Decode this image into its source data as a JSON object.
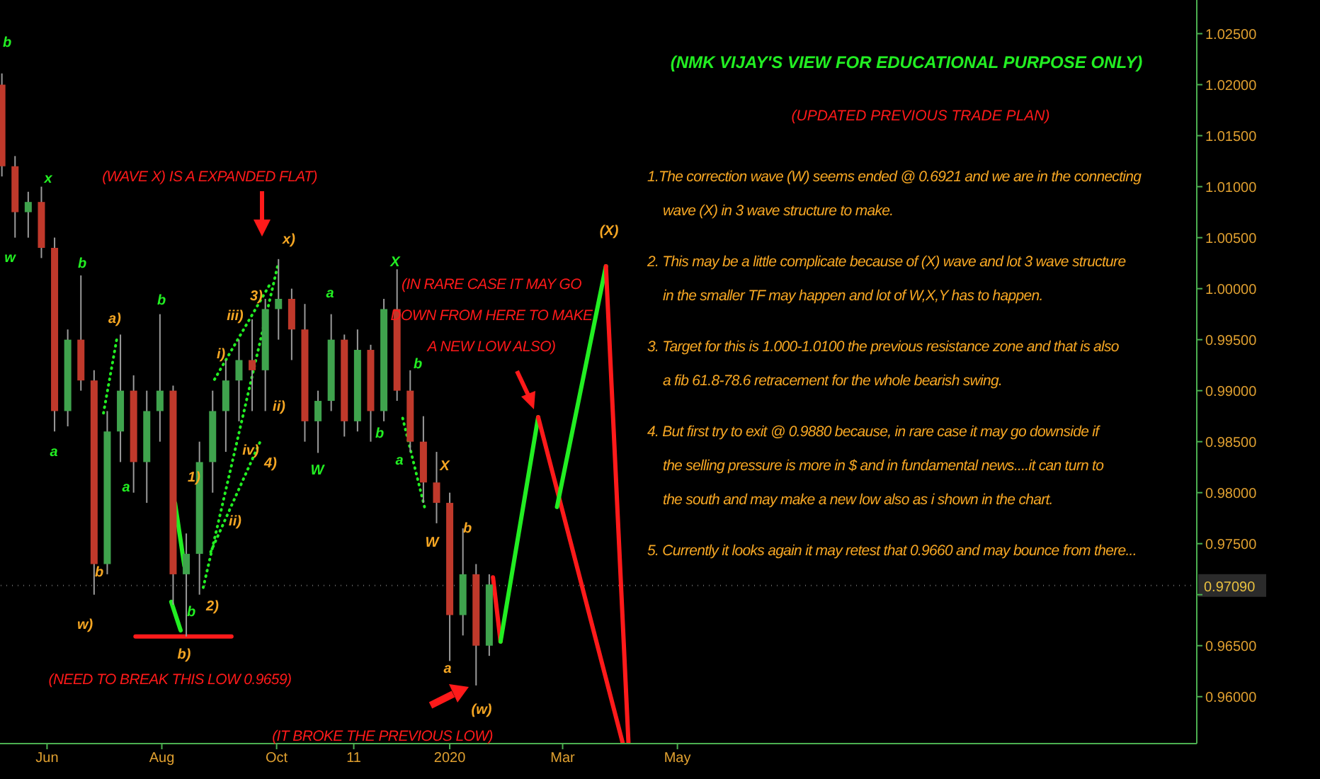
{
  "chart_data": {
    "type": "candlestick",
    "title": "(NMK VIJAY'S VIEW FOR EDUCATIONAL PURPOSE ONLY)",
    "subtitle": "(UPDATED PREVIOUS TRADE PLAN)",
    "x": [
      "2019-05-08",
      "2019-05-15",
      "2019-05-22",
      "2019-05-29",
      "2019-06-05",
      "2019-06-12",
      "2019-06-19",
      "2019-06-26",
      "2019-07-03",
      "2019-07-10",
      "2019-07-17",
      "2019-07-24",
      "2019-07-31",
      "2019-08-07",
      "2019-08-14",
      "2019-08-21",
      "2019-08-28",
      "2019-09-04",
      "2019-09-11",
      "2019-09-18",
      "2019-09-25",
      "2019-10-02",
      "2019-10-09",
      "2019-10-16",
      "2019-10-23",
      "2019-10-30",
      "2019-11-06",
      "2019-11-13",
      "2019-11-20",
      "2019-11-27",
      "2019-12-04",
      "2019-12-11",
      "2019-12-18",
      "2019-12-25",
      "2020-01-01",
      "2020-01-08",
      "2020-01-15",
      "2020-01-22"
    ],
    "ohlc": [
      [
        1.02,
        1.0211,
        1.011,
        1.012
      ],
      [
        1.012,
        1.013,
        1.005,
        1.0075
      ],
      [
        1.0075,
        1.0095,
        1.005,
        1.0085
      ],
      [
        1.0085,
        1.01,
        1.003,
        1.004
      ],
      [
        1.004,
        1.005,
        0.986,
        0.988
      ],
      [
        0.988,
        0.996,
        0.9865,
        0.995
      ],
      [
        0.995,
        1.0013,
        0.99,
        0.991
      ],
      [
        0.991,
        0.992,
        0.97,
        0.973
      ],
      [
        0.973,
        0.988,
        0.972,
        0.986
      ],
      [
        0.986,
        0.9955,
        0.983,
        0.99
      ],
      [
        0.99,
        0.9915,
        0.98,
        0.983
      ],
      [
        0.983,
        0.99,
        0.979,
        0.988
      ],
      [
        0.988,
        0.9975,
        0.985,
        0.99
      ],
      [
        0.99,
        0.9905,
        0.969,
        0.972
      ],
      [
        0.972,
        0.976,
        0.9659,
        0.974
      ],
      [
        0.974,
        0.985,
        0.97,
        0.983
      ],
      [
        0.983,
        0.99,
        0.98,
        0.988
      ],
      [
        0.988,
        0.993,
        0.984,
        0.991
      ],
      [
        0.991,
        0.995,
        0.987,
        0.993
      ],
      [
        0.993,
        0.997,
        0.988,
        0.992
      ],
      [
        0.992,
        0.999,
        0.988,
        0.998
      ],
      [
        0.998,
        1.0029,
        0.995,
        0.999
      ],
      [
        0.999,
        1.0,
        0.993,
        0.996
      ],
      [
        0.996,
        0.9985,
        0.985,
        0.987
      ],
      [
        0.987,
        0.99,
        0.9839,
        0.989
      ],
      [
        0.989,
        0.9975,
        0.988,
        0.995
      ],
      [
        0.995,
        0.9955,
        0.9855,
        0.987
      ],
      [
        0.987,
        0.996,
        0.986,
        0.994
      ],
      [
        0.994,
        0.9945,
        0.985,
        0.988
      ],
      [
        0.988,
        0.999,
        0.987,
        0.998
      ],
      [
        0.998,
        1.0019,
        0.989,
        0.99
      ],
      [
        0.99,
        0.992,
        0.984,
        0.985
      ],
      [
        0.985,
        0.9875,
        0.979,
        0.981
      ],
      [
        0.981,
        0.984,
        0.977,
        0.979
      ],
      [
        0.979,
        0.98,
        0.9635,
        0.968
      ],
      [
        0.968,
        0.9765,
        0.966,
        0.972
      ],
      [
        0.972,
        0.973,
        0.9611,
        0.965
      ],
      [
        0.965,
        0.972,
        0.964,
        0.971
      ]
    ],
    "series": [
      {
        "type": "line",
        "x": [
          "2019-07-18",
          "2019-09-07"
        ],
        "values": [
          0.9659,
          0.9659
        ],
        "color": "#ff1a1a",
        "line_style": "solid"
      },
      {
        "type": "line",
        "x": [
          "2019-08-08",
          "2019-08-13"
        ],
        "values": [
          0.979,
          0.9728
        ],
        "color": "#22ee22",
        "line_style": "solid"
      },
      {
        "type": "line",
        "x": [
          "2019-08-06",
          "2019-08-11"
        ],
        "values": [
          0.9693,
          0.9665
        ],
        "color": "#22ee22",
        "line_style": "solid"
      },
      {
        "type": "line",
        "x": [
          "2019-07-01",
          "2019-07-08"
        ],
        "values": [
          0.9878,
          0.995
        ],
        "color": "#22ee22",
        "line_style": "dotted"
      },
      {
        "type": "line",
        "x": [
          "2019-08-23",
          "2019-10-02"
        ],
        "values": [
          0.9707,
          1.0026
        ],
        "color": "#22ee22",
        "line_style": "dotted"
      },
      {
        "type": "line",
        "x": [
          "2019-08-29",
          "2019-09-28"
        ],
        "values": [
          0.9911,
          1.0006
        ],
        "color": "#22ee22",
        "line_style": "dotted"
      },
      {
        "type": "line",
        "x": [
          "2019-08-27",
          "2019-09-23"
        ],
        "values": [
          0.9742,
          0.9853
        ],
        "color": "#22ee22",
        "line_style": "dotted"
      },
      {
        "type": "line",
        "x": [
          "2019-12-07",
          "2019-12-19"
        ],
        "values": [
          0.9873,
          0.9783
        ],
        "color": "#22ee22",
        "line_style": "dotted"
      },
      {
        "type": "line",
        "x": [
          "2020-01-24",
          "2020-01-28"
        ],
        "values": [
          0.9717,
          0.9654
        ],
        "color": "#ff1a1a",
        "line_style": "solid"
      },
      {
        "type": "line",
        "x": [
          "2020-01-28",
          "2020-02-17"
        ],
        "values": [
          0.9654,
          0.9874
        ],
        "color": "#22ee22",
        "line_style": "solid"
      },
      {
        "type": "line",
        "x": [
          "2020-02-17",
          "2020-04-02"
        ],
        "values": [
          0.9874,
          0.9554
        ],
        "color": "#ff1a1a",
        "line_style": "solid"
      },
      {
        "type": "line",
        "x": [
          "2020-02-27",
          "2020-03-24"
        ],
        "values": [
          0.9786,
          1.0022
        ],
        "color": "#22ee22",
        "line_style": "solid"
      },
      {
        "type": "line",
        "x": [
          "2020-03-24",
          "2020-04-05"
        ],
        "values": [
          1.0022,
          0.9554
        ],
        "color": "#ff1a1a",
        "line_style": "solid"
      }
    ],
    "xlim": [
      "2019-05-07",
      "2021-02-01"
    ],
    "xticks": [
      {
        "value": "2019-06-01",
        "label": "Jun"
      },
      {
        "value": "2019-08-01",
        "label": "Aug"
      },
      {
        "value": "2019-10-01",
        "label": "Oct"
      },
      {
        "value": "2019-11-11",
        "label": "11"
      },
      {
        "value": "2020-01-01",
        "label": "2020"
      },
      {
        "value": "2020-03-01",
        "label": "Mar"
      },
      {
        "value": "2020-05-01",
        "label": "May"
      }
    ],
    "ylim": [
      0.9554,
      1.0283
    ],
    "yticks": [
      {
        "value": 0.96,
        "label": "0.96000"
      },
      {
        "value": 0.965,
        "label": "0.96500"
      },
      {
        "value": 0.97,
        "label": null
      },
      {
        "value": 0.975,
        "label": "0.97500"
      },
      {
        "value": 0.98,
        "label": "0.98000"
      },
      {
        "value": 0.985,
        "label": "0.98500"
      },
      {
        "value": 0.99,
        "label": "0.99000"
      },
      {
        "value": 0.995,
        "label": "0.99500"
      },
      {
        "value": 1.0,
        "label": "1.00000"
      },
      {
        "value": 1.005,
        "label": "1.00500"
      },
      {
        "value": 1.01,
        "label": "1.01000"
      },
      {
        "value": 1.015,
        "label": "1.01500"
      },
      {
        "value": 1.02,
        "label": "1.02000"
      },
      {
        "value": 1.025,
        "label": "1.02500"
      }
    ],
    "ref_lines": [
      {
        "axis": "y",
        "value": 0.9709,
        "label": "0.97090",
        "color": "#666666",
        "line_style": "dotted"
      }
    ],
    "annotations": [
      "b",
      "x",
      "w",
      "b",
      "a",
      "b",
      "a",
      "b",
      "a",
      "W",
      "b",
      "X",
      "b",
      "a",
      "a)",
      "b",
      "w)",
      "b)",
      "2)",
      "x)",
      "3)",
      "i)",
      "iii)",
      "ii)",
      "iv)",
      "4)",
      "ii)",
      "X",
      "W",
      "b",
      "a",
      "(w)",
      "(X)",
      "1)",
      "(WAVE X) IS A EXPANDED FLAT)",
      "(NEED TO BREAK THIS LOW 0.9659)",
      "(IT BROKE THE PREVIOUS LOW)",
      "(IN RARE CASE IT MAY GO\nDOWN FROM HERE TO MAKE\nA NEW LOW ALSO)",
      "1.The correction wave (W) seems ended @ 0.6921 and we are in the connecting\nwave (X) in 3 wave structure to make.",
      "2. This may be a little complicate because of (X) wave and lot 3 wave structure\nin the smaller TF may happen and lot of W,X,Y has to happen.",
      "3. Target for this is 1.000-1.0100 the previous resistance zone and that is also\na fib 61.8-78.6 retracement for the whole bearish swing.",
      "4. But first try to exit @ 0.9880 because, in rare case it may go downside if\nthe selling pressure is more in $ and in fundamental news....it can turn to\nthe south and may make a new low also as i shown in the chart.",
      "5. Currently it looks again it may retest that 0.9660 and may bounce from there..."
    ]
  }
}
